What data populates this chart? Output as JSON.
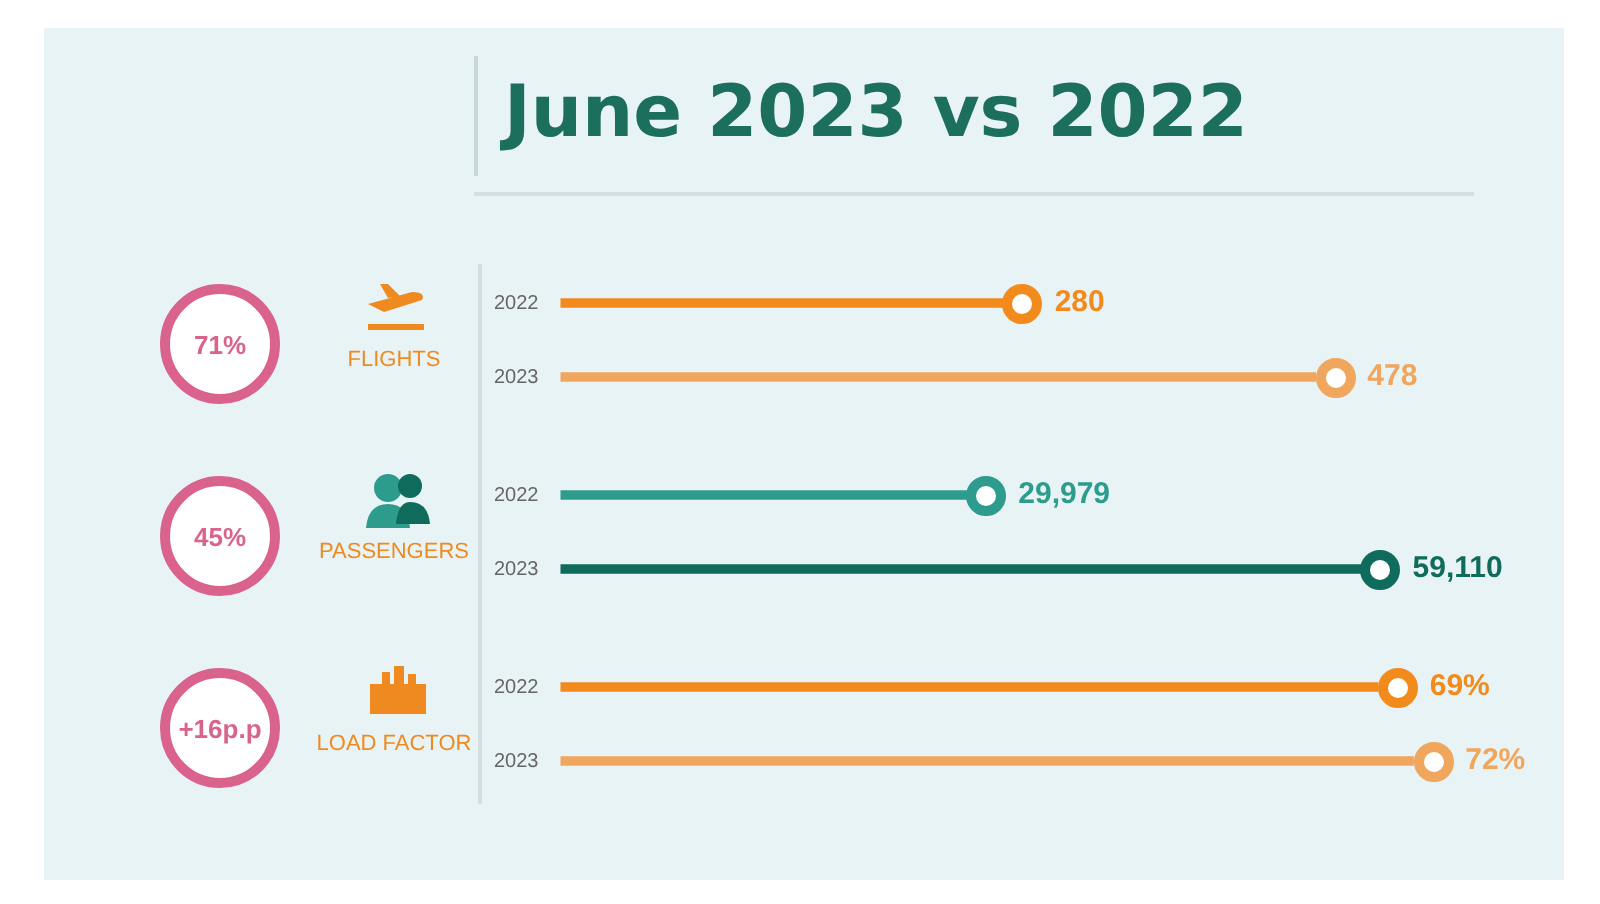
{
  "chart_data": [
    {
      "type": "other",
      "title": "June 2023 vs 2022"
    },
    {
      "type": "bar",
      "orientation": "horizontal",
      "ylabel": "FLIGHTS",
      "annotations": [
        "71%"
      ],
      "categories": [
        "2022",
        "2023"
      ],
      "values": [
        280,
        478
      ],
      "value_labels": [
        "280",
        "478"
      ],
      "colors": [
        "#f28a1c",
        "#f0a65c"
      ],
      "tick_labels": "y",
      "grid": false
    },
    {
      "type": "bar",
      "orientation": "horizontal",
      "ylabel": "PASSENGERS",
      "annotations": [
        "45%"
      ],
      "categories": [
        "2022",
        "2023"
      ],
      "values": [
        29979,
        59110
      ],
      "value_labels": [
        "29,979",
        "59,110"
      ],
      "colors": [
        "#2e9c8c",
        "#0f6b5b"
      ],
      "tick_labels": "y",
      "grid": false
    },
    {
      "type": "bar",
      "orientation": "horizontal",
      "ylabel": "LOAD FACTOR",
      "annotations": [
        "+16p.p"
      ],
      "categories": [
        "2022",
        "2023"
      ],
      "values": [
        69,
        72
      ],
      "value_labels": [
        "69%",
        "72%"
      ],
      "colors": [
        "#f28a1c",
        "#f0a65c"
      ],
      "tick_labels": "y",
      "grid": false
    }
  ]
}
